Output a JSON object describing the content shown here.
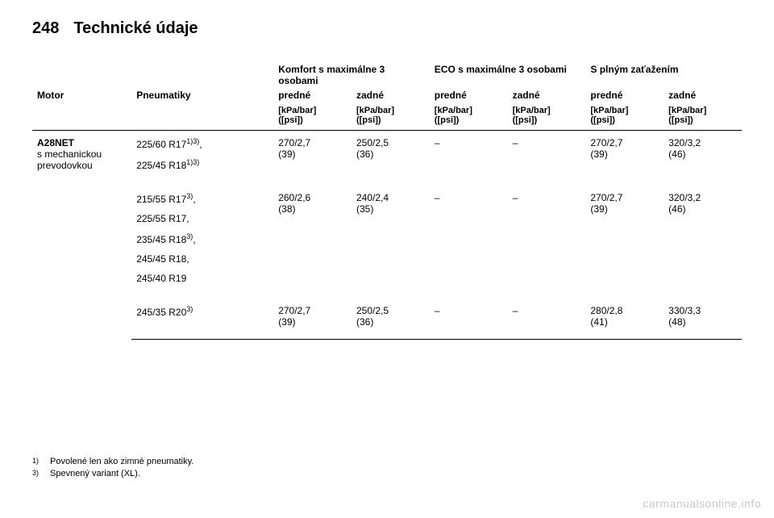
{
  "page_number": "248",
  "page_title": "Technické údaje",
  "headers": {
    "group1": "Komfort s maximálne 3 osobami",
    "group2": "ECO s maximálne 3 osobami",
    "group3": "S plným zaťažením",
    "motor": "Motor",
    "tires": "Pneumatiky",
    "front": "predné",
    "rear": "zadné",
    "unit_line1": "[kPa/bar]",
    "unit_line2": "([psi])"
  },
  "motor": {
    "name": "A28NET",
    "line2": "s mechanickou",
    "line3": "prevodovkou"
  },
  "rows": [
    {
      "tires": [
        "225/60 R17<sup>1)3)</sup>,",
        "225/45 R18<sup>1)3)</sup>"
      ],
      "comfort_front": "270/2,7 (39)",
      "comfort_rear": "250/2,5 (36)",
      "eco_front": "–",
      "eco_rear": "–",
      "full_front": "270/2,7 (39)",
      "full_rear": "320/3,2 (46)"
    },
    {
      "tires": [
        "215/55 R17<sup>3)</sup>,",
        "225/55 R17,",
        "235/45 R18<sup>3)</sup>,",
        "245/45 R18,",
        "245/40 R19"
      ],
      "comfort_front": "260/2,6 (38)",
      "comfort_rear": "240/2,4 (35)",
      "eco_front": "–",
      "eco_rear": "–",
      "full_front": "270/2,7 (39)",
      "full_rear": "320/3,2 (46)"
    },
    {
      "tires": [
        "245/35 R20<sup>3)</sup>"
      ],
      "comfort_front": "270/2,7 (39)",
      "comfort_rear": "250/2,5 (36)",
      "eco_front": "–",
      "eco_rear": "–",
      "full_front": "280/2,8 (41)",
      "full_rear": "330/3,3 (48)"
    }
  ],
  "footnotes": [
    {
      "mark": "1)",
      "text": "Povolené len ako zimné pneumatiky."
    },
    {
      "mark": "3)",
      "text": "Spevnený variant (XL)."
    }
  ],
  "watermark": "carmanualsonline.info"
}
